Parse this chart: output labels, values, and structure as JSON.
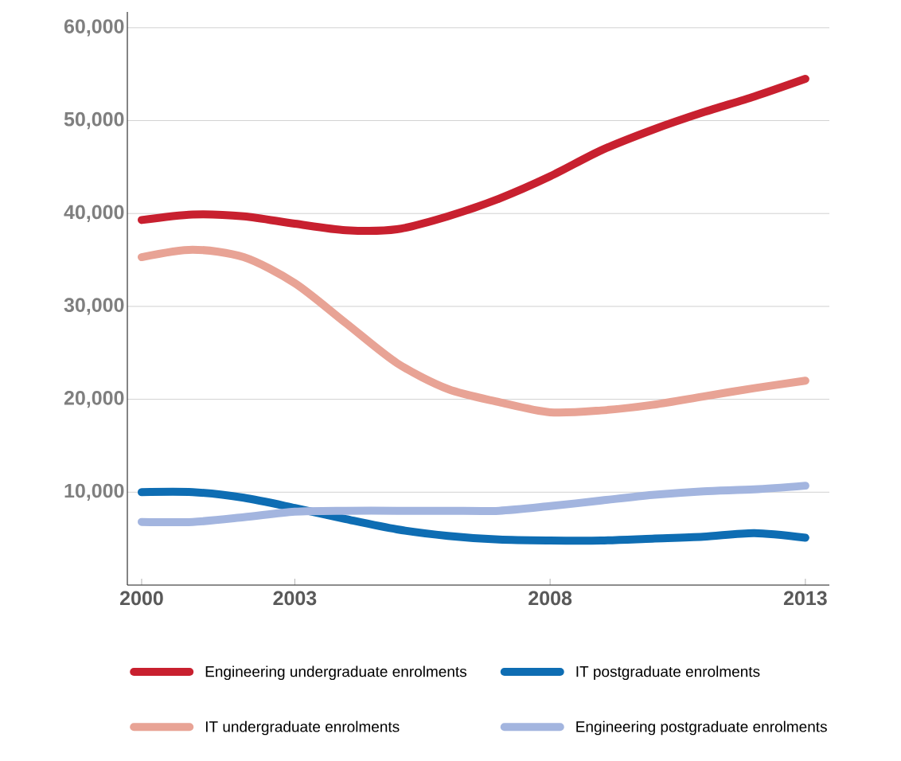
{
  "chart_data": {
    "type": "line",
    "x": [
      2000,
      2001,
      2002,
      2003,
      2004,
      2005,
      2006,
      2007,
      2008,
      2009,
      2010,
      2011,
      2012,
      2013
    ],
    "series": [
      {
        "name": "Engineering undergraduate enrolments",
        "color": "#c8202f",
        "values": [
          39300,
          39900,
          39700,
          38900,
          38200,
          38300,
          39700,
          41600,
          44000,
          46800,
          49000,
          50900,
          52600,
          54500
        ]
      },
      {
        "name": "IT postgraduate enrolments",
        "color": "#0e6db3",
        "values": [
          10000,
          10000,
          9400,
          8300,
          7100,
          6000,
          5300,
          4900,
          4800,
          4800,
          5000,
          5200,
          5600,
          5100
        ]
      },
      {
        "name": "IT undergraduate enrolments",
        "color": "#e8a395",
        "values": [
          35300,
          36100,
          35300,
          32500,
          28200,
          23900,
          21100,
          19700,
          18600,
          18800,
          19400,
          20300,
          21200,
          22000
        ]
      },
      {
        "name": "Engineering postgraduate enrolments",
        "color": "#a3b5df",
        "values": [
          6800,
          6800,
          7300,
          7900,
          8000,
          8000,
          8000,
          8000,
          8500,
          9100,
          9700,
          10100,
          10300,
          10700
        ]
      }
    ],
    "xlim": [
      1999.72,
      2013.47
    ],
    "ylim": [
      0,
      61700
    ],
    "xticks": [
      2000,
      2003,
      2008,
      2013
    ],
    "yticks": [
      {
        "value": 0,
        "label": null
      },
      {
        "value": 10000,
        "label": "10,000"
      },
      {
        "value": 20000,
        "label": "20,000"
      },
      {
        "value": 30000,
        "label": "30,000"
      },
      {
        "value": 40000,
        "label": "40,000"
      },
      {
        "value": 50000,
        "label": "50,000"
      },
      {
        "value": 60000,
        "label": "60,000"
      }
    ],
    "grid": "y",
    "legend": "bottom",
    "line_style": "solid",
    "marker": "none"
  }
}
